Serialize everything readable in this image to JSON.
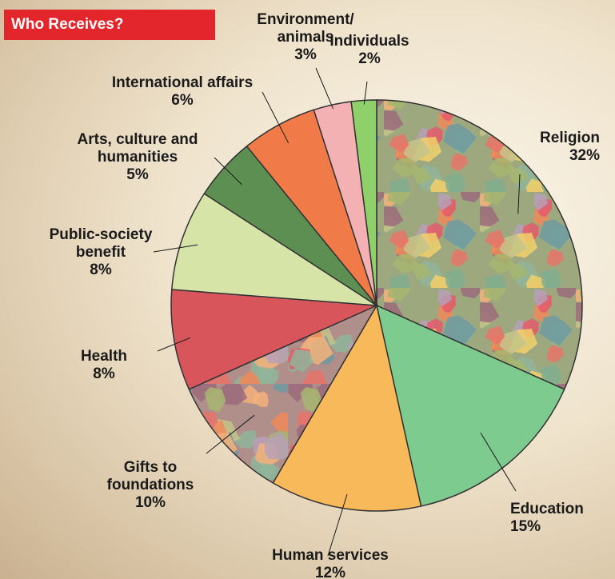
{
  "chart_data": {
    "type": "pie",
    "title": "Who Receives?",
    "slices": [
      {
        "label": "Religion",
        "value": 32,
        "pct_text": "32%",
        "color": "#9ea87e",
        "pattern": "mosaic"
      },
      {
        "label": "Education",
        "value": 15,
        "pct_text": "15%",
        "color": "#7ecb8f"
      },
      {
        "label": "Human services",
        "value": 12,
        "pct_text": "12%",
        "color": "#f7b95a"
      },
      {
        "label": "Gifts to foundations",
        "value": 10,
        "pct_text": "10%",
        "color": "#b08f8a",
        "pattern": "mosaic"
      },
      {
        "label": "Health",
        "value": 8,
        "pct_text": "8%",
        "color": "#d9555c"
      },
      {
        "label": "Public-society benefit",
        "value": 8,
        "pct_text": "8%",
        "color": "#d6e4a8"
      },
      {
        "label": "Arts, culture and humanities",
        "value": 5,
        "pct_text": "5%",
        "color": "#5e8f52"
      },
      {
        "label": "International affairs",
        "value": 6,
        "pct_text": "6%",
        "color": "#f07a48"
      },
      {
        "label": "Environment/ animals",
        "value": 3,
        "pct_text": "3%",
        "color": "#f3b1b4"
      },
      {
        "label": "Individuals",
        "value": 2,
        "pct_text": "2%",
        "color": "#8fd06a"
      }
    ]
  }
}
